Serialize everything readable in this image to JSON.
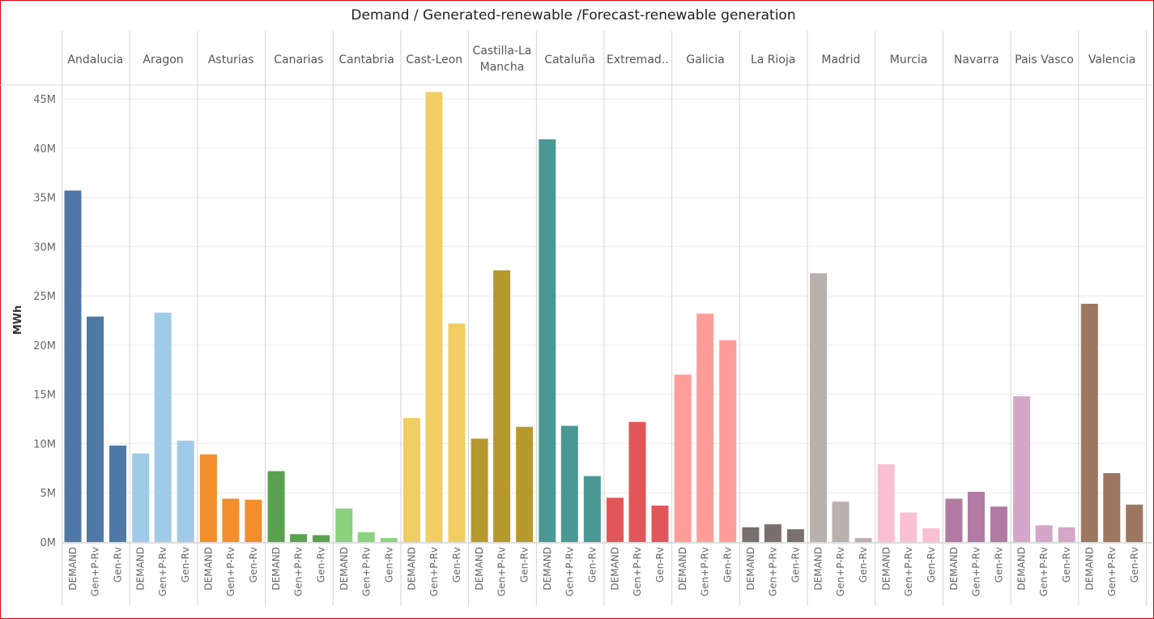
{
  "chart_data": {
    "type": "bar",
    "title": "Demand / Generated-renewable /Forecast-renewable generation",
    "ylabel": "MWh",
    "xlabel": "",
    "ylim": [
      0,
      46000000
    ],
    "yticks": [
      {
        "value": 0,
        "label": "0M"
      },
      {
        "value": 5000000,
        "label": "5M"
      },
      {
        "value": 10000000,
        "label": "10M"
      },
      {
        "value": 15000000,
        "label": "15M"
      },
      {
        "value": 20000000,
        "label": "20M"
      },
      {
        "value": 25000000,
        "label": "25M"
      },
      {
        "value": 30000000,
        "label": "30M"
      },
      {
        "value": 35000000,
        "label": "35M"
      },
      {
        "value": 40000000,
        "label": "40M"
      },
      {
        "value": 45000000,
        "label": "45M"
      }
    ],
    "grid": true,
    "categories": [
      "DEMAND",
      "Gen+P-Rv",
      "Gen-Rv"
    ],
    "panels": [
      {
        "name": "Andalucia",
        "color": "#4e79a7",
        "values": [
          35700000,
          22900000,
          9800000
        ]
      },
      {
        "name": "Aragon",
        "color": "#a0cbe8",
        "values": [
          9000000,
          23300000,
          10300000
        ]
      },
      {
        "name": "Asturias",
        "color": "#f28e2b",
        "values": [
          8900000,
          4400000,
          4300000
        ]
      },
      {
        "name": "Canarias",
        "color": "#59a14f",
        "values": [
          7200000,
          800000,
          700000
        ]
      },
      {
        "name": "Cantabria",
        "color": "#8cd17d",
        "values": [
          3400000,
          1000000,
          400000
        ]
      },
      {
        "name": "Cast-Leon",
        "color": "#f1ce63",
        "values": [
          12600000,
          45700000,
          22200000
        ]
      },
      {
        "name": "Castilla-La Mancha",
        "color": "#b6992d",
        "values": [
          10500000,
          27600000,
          11700000
        ]
      },
      {
        "name": "Cataluña",
        "color": "#499894",
        "values": [
          40900000,
          11800000,
          6700000
        ]
      },
      {
        "name": "Extremad..",
        "color": "#e15759",
        "values": [
          4500000,
          12200000,
          3700000
        ]
      },
      {
        "name": "Galicia",
        "color": "#ff9d9a",
        "values": [
          17000000,
          23200000,
          20500000
        ]
      },
      {
        "name": "La Rioja",
        "color": "#79706e",
        "values": [
          1500000,
          1800000,
          1300000
        ]
      },
      {
        "name": "Madrid",
        "color": "#bab0ac",
        "values": [
          27300000,
          4100000,
          400000
        ]
      },
      {
        "name": "Murcia",
        "color": "#fabfd2",
        "values": [
          7900000,
          3000000,
          1400000
        ]
      },
      {
        "name": "Navarra",
        "color": "#b07aa1",
        "values": [
          4400000,
          5100000,
          3600000
        ]
      },
      {
        "name": "Pais Vasco",
        "color": "#d4a6c8",
        "values": [
          14800000,
          1700000,
          1500000
        ]
      },
      {
        "name": "Valencia",
        "color": "#9d7660",
        "values": [
          24200000,
          7000000,
          3800000
        ]
      }
    ]
  }
}
